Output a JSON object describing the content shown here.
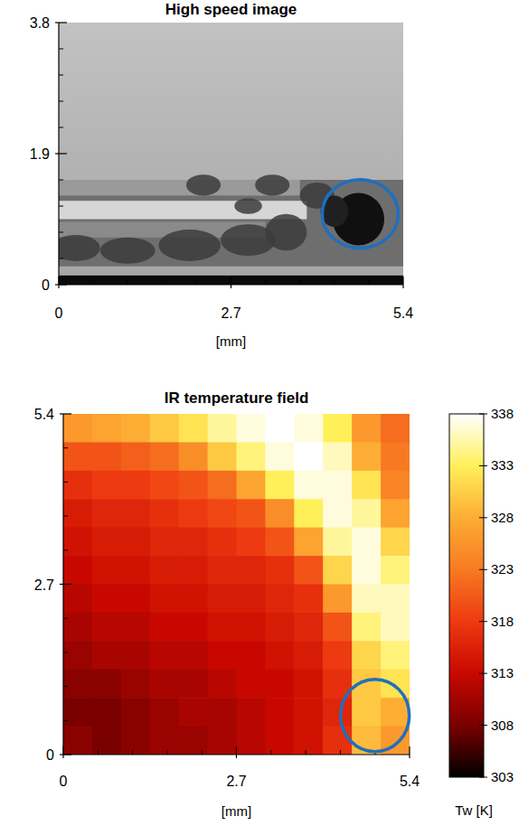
{
  "chart_data": [
    {
      "type": "image",
      "title": "High speed image",
      "xlabel": "[mm]",
      "xlim": [
        0,
        5.4
      ],
      "xticks": [
        0,
        2.7,
        5.4
      ],
      "ylim": [
        0,
        3.8
      ],
      "yticks": [
        0,
        1.9,
        3.8
      ]
    },
    {
      "type": "heatmap",
      "title": "IR temperature field",
      "xlabel": "[mm]",
      "xlim": [
        0,
        5.4
      ],
      "xticks": [
        0,
        2.7,
        5.4
      ],
      "ylim": [
        0,
        5.4
      ],
      "yticks": [
        0,
        2.7,
        5.4
      ],
      "cells": [
        [
          326,
          327,
          328,
          330,
          332,
          335,
          337,
          338,
          337,
          333,
          326,
          322
        ],
        [
          320,
          320,
          321,
          322,
          325,
          330,
          334,
          337,
          338,
          336,
          328,
          323
        ],
        [
          317,
          318,
          318,
          319,
          320,
          322,
          327,
          333,
          337,
          337,
          332,
          324
        ],
        [
          315,
          316,
          316,
          317,
          318,
          319,
          320,
          325,
          333,
          337,
          335,
          327
        ],
        [
          314,
          315,
          315,
          316,
          316,
          317,
          318,
          320,
          327,
          335,
          337,
          331
        ],
        [
          313,
          314,
          314,
          315,
          315,
          316,
          316,
          317,
          320,
          331,
          337,
          334
        ],
        [
          312,
          313,
          313,
          314,
          314,
          315,
          315,
          316,
          317,
          326,
          336,
          336
        ],
        [
          311,
          312,
          312,
          313,
          313,
          314,
          314,
          315,
          316,
          320,
          334,
          336
        ],
        [
          310,
          311,
          311,
          312,
          312,
          313,
          313,
          314,
          315,
          318,
          331,
          334
        ],
        [
          309,
          309,
          310,
          311,
          311,
          312,
          313,
          313,
          314,
          317,
          330,
          332
        ],
        [
          308,
          308,
          309,
          310,
          311,
          311,
          312,
          313,
          314,
          316,
          330,
          328
        ],
        [
          309,
          308,
          309,
          310,
          310,
          311,
          312,
          313,
          314,
          317,
          329,
          326
        ]
      ],
      "colorbar": {
        "label": "Tw [K]",
        "range": [
          303,
          338
        ],
        "ticks": [
          303,
          308,
          313,
          318,
          323,
          328,
          333,
          338
        ]
      }
    }
  ]
}
